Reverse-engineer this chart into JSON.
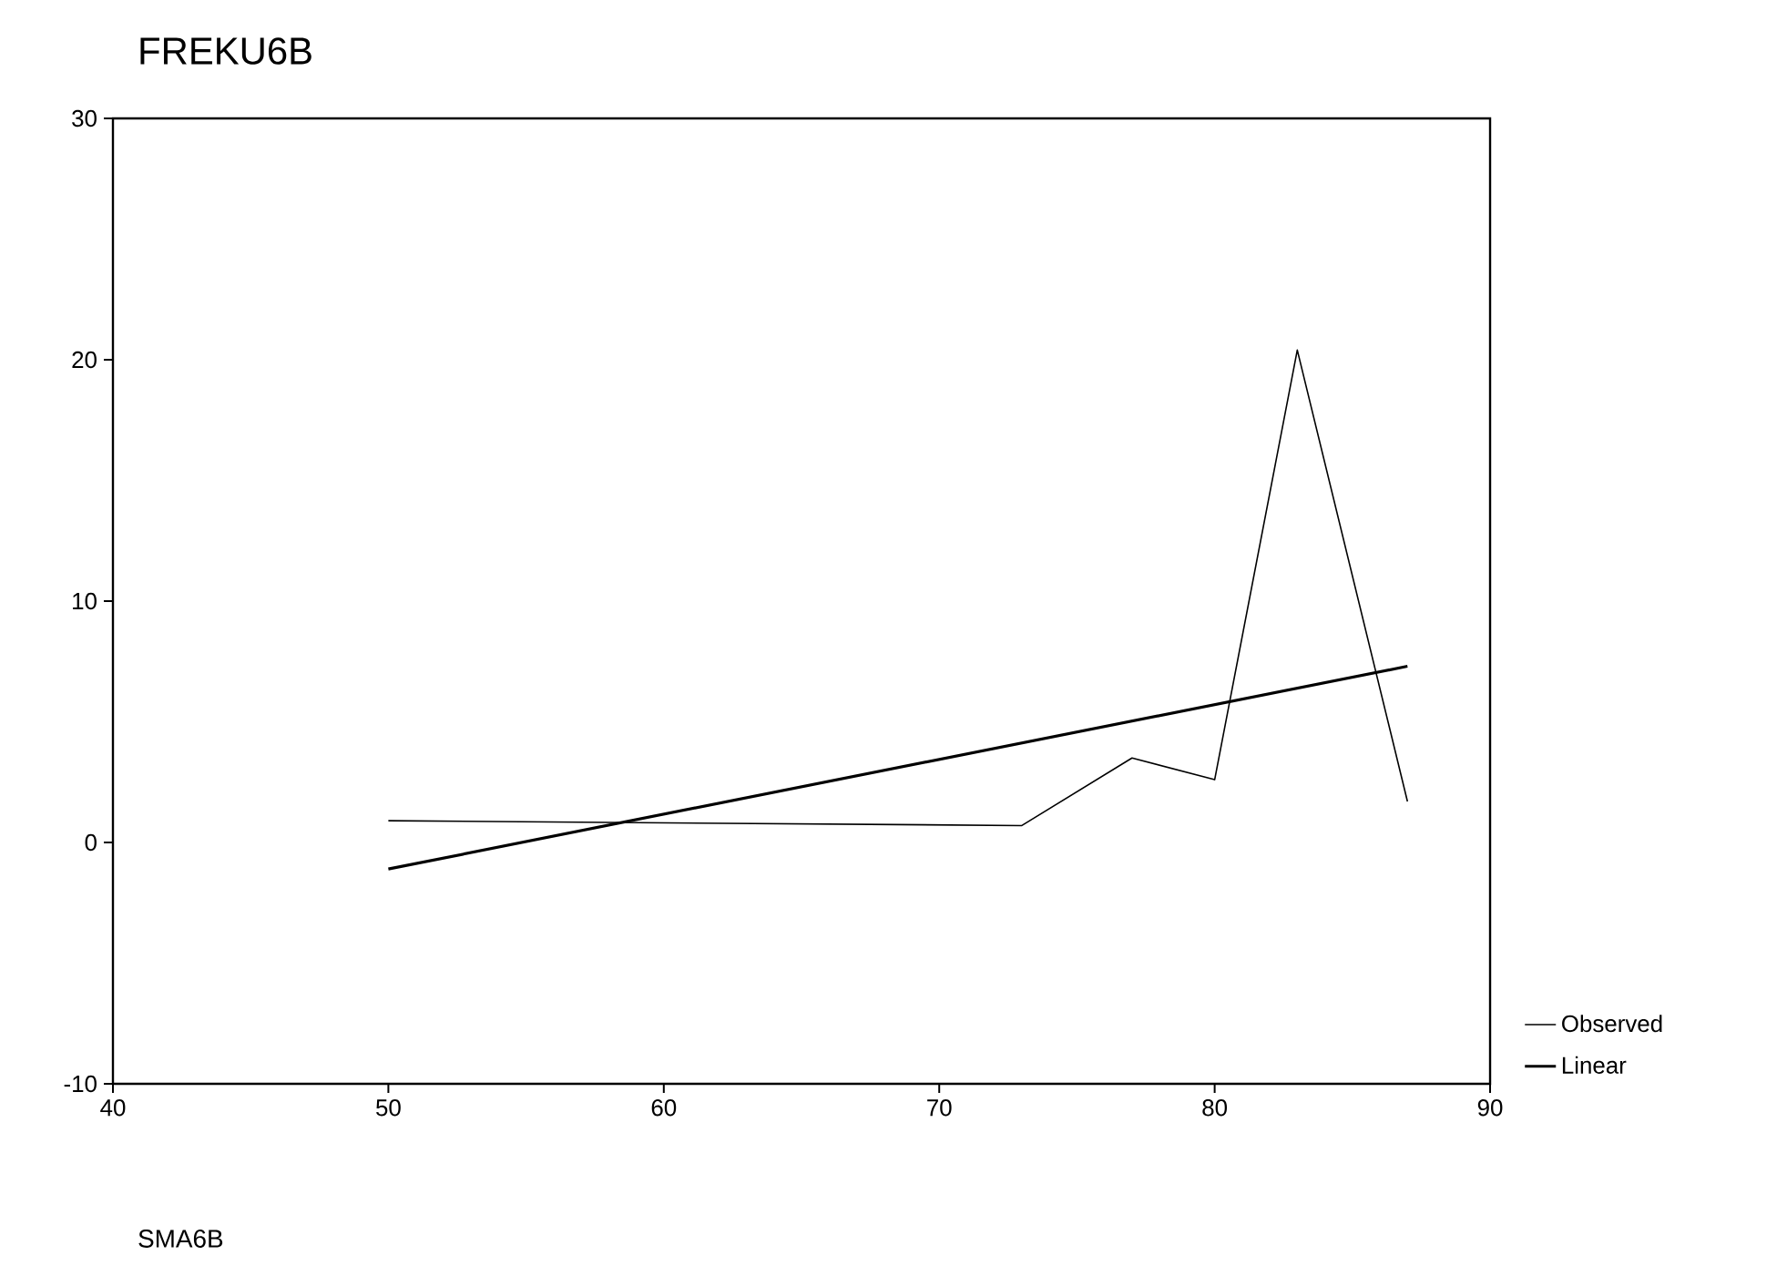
{
  "chart_data": {
    "type": "line",
    "ylabel": "FREKU6B",
    "annotations": [
      "SMA6B"
    ],
    "xlim": [
      40,
      90
    ],
    "xticks": [
      40,
      50,
      60,
      70,
      80,
      90
    ],
    "ylim": [
      -10,
      30
    ],
    "yticks": [
      -10,
      0,
      10,
      20,
      30
    ],
    "grid": false,
    "legend": "bottom right",
    "marker": "none",
    "line_style": "solid",
    "series": [
      {
        "name": "Observed",
        "color": "#000000",
        "x": [
          50,
          73,
          77,
          80,
          83,
          87
        ],
        "values": [
          0.9,
          0.7,
          3.5,
          2.6,
          20.4,
          1.7
        ]
      },
      {
        "name": "Linear",
        "color": "#000000",
        "x": [
          50,
          87
        ],
        "values": [
          -1.1,
          7.3
        ]
      }
    ]
  }
}
